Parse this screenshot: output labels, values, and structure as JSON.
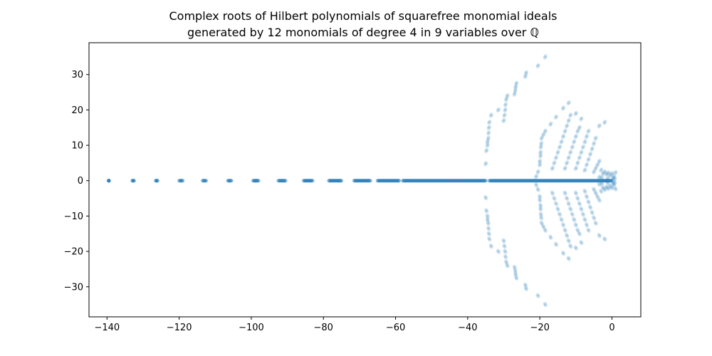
{
  "chart_data": {
    "type": "scatter",
    "title": "Complex roots of Hilbert polynomials of squarefree monomial ideals",
    "subtitle": "generated by 12 monomials of degree 4 in 9 variables over ℚ",
    "xlabel": "",
    "ylabel": "",
    "xlim": [
      -145,
      8
    ],
    "ylim": [
      -38.5,
      39
    ],
    "xticks": [
      -140,
      -120,
      -100,
      -80,
      -60,
      -40,
      -20,
      0
    ],
    "yticks": [
      -30,
      -20,
      -10,
      0,
      10,
      20,
      30
    ],
    "xtick_labels": [
      "−140",
      "−120",
      "−100",
      "−80",
      "−60",
      "−40",
      "−20",
      "0"
    ],
    "ytick_labels": [
      "−30",
      "−20",
      "−10",
      "0",
      "10",
      "20",
      "30"
    ],
    "grid": false,
    "legend": "none",
    "series": [
      {
        "color": "#1f77b4",
        "opacity": 0.15,
        "points_upper_half_plane_mirrored": true,
        "real_axis_clusters": [
          {
            "x": [
              -139.5,
              -139.5
            ]
          },
          {
            "x": [
              -133,
              -132.5
            ]
          },
          {
            "x": [
              -126.5,
              -126
            ]
          },
          {
            "x": [
              -120,
              -119
            ]
          },
          {
            "x": [
              -113.5,
              -112.5
            ]
          },
          {
            "x": [
              -106.5,
              -105.5
            ]
          },
          {
            "x": [
              -99.5,
              -98
            ]
          },
          {
            "x": [
              -92.5,
              -90.5
            ]
          },
          {
            "x": [
              -85.5,
              -83
            ]
          },
          {
            "x": [
              -78.5,
              -75
            ]
          },
          {
            "x": [
              -71.5,
              -67
            ]
          },
          {
            "x": [
              -65,
              -59
            ]
          },
          {
            "x": [
              -58,
              -35
            ]
          },
          {
            "x": [
              -34,
              0
            ]
          }
        ],
        "complex_points": [
          {
            "x": -35.0,
            "y": 4.8
          },
          {
            "x": -34.8,
            "y": 8.5
          },
          {
            "x": -34.5,
            "y": 10.0
          },
          {
            "x": -34.5,
            "y": 11.0
          },
          {
            "x": -34.3,
            "y": 12.0
          },
          {
            "x": -34.2,
            "y": 13.5
          },
          {
            "x": -34.1,
            "y": 15.0
          },
          {
            "x": -34.0,
            "y": 16.5
          },
          {
            "x": -33.5,
            "y": 18.5
          },
          {
            "x": -31.5,
            "y": 20.0
          },
          {
            "x": -30.0,
            "y": 17.0
          },
          {
            "x": -29.8,
            "y": 18.5
          },
          {
            "x": -29.6,
            "y": 20.0
          },
          {
            "x": -29.5,
            "y": 21.5
          },
          {
            "x": -29.3,
            "y": 23.0
          },
          {
            "x": -29.0,
            "y": 24.0
          },
          {
            "x": -27.0,
            "y": 24.5
          },
          {
            "x": -26.8,
            "y": 25.5
          },
          {
            "x": -26.7,
            "y": 26.5
          },
          {
            "x": -26.5,
            "y": 27.5
          },
          {
            "x": -24.0,
            "y": 29.5
          },
          {
            "x": -23.8,
            "y": 30.5
          },
          {
            "x": -20.5,
            "y": 32.5
          },
          {
            "x": -18.5,
            "y": 35.0
          },
          {
            "x": -21.0,
            "y": 1.2
          },
          {
            "x": -20.5,
            "y": 2.5
          },
          {
            "x": -20.0,
            "y": 4.5
          },
          {
            "x": -20.0,
            "y": 5.5
          },
          {
            "x": -19.8,
            "y": 7.0
          },
          {
            "x": -19.8,
            "y": 8.0
          },
          {
            "x": -19.7,
            "y": 9.5
          },
          {
            "x": -19.6,
            "y": 10.5
          },
          {
            "x": -19.5,
            "y": 12.0
          },
          {
            "x": -19.0,
            "y": 13.0
          },
          {
            "x": -18.5,
            "y": 14.0
          },
          {
            "x": -17.0,
            "y": 16.0
          },
          {
            "x": -15.5,
            "y": 18.0
          },
          {
            "x": -13.5,
            "y": 20.5
          },
          {
            "x": -12.0,
            "y": 22.0
          },
          {
            "x": -10.0,
            "y": 19.0
          },
          {
            "x": -8.5,
            "y": 17.5
          },
          {
            "x": -16.5,
            "y": 3.5
          },
          {
            "x": -16.0,
            "y": 5.0
          },
          {
            "x": -15.5,
            "y": 6.5
          },
          {
            "x": -15.0,
            "y": 8.0
          },
          {
            "x": -14.5,
            "y": 9.5
          },
          {
            "x": -14.0,
            "y": 11.0
          },
          {
            "x": -13.5,
            "y": 12.5
          },
          {
            "x": -13.0,
            "y": 14.0
          },
          {
            "x": -12.5,
            "y": 15.5
          },
          {
            "x": -12.0,
            "y": 17.0
          },
          {
            "x": -11.5,
            "y": 18.5
          },
          {
            "x": -13.0,
            "y": 3.5
          },
          {
            "x": -12.5,
            "y": 5.0
          },
          {
            "x": -12.0,
            "y": 6.5
          },
          {
            "x": -11.5,
            "y": 8.0
          },
          {
            "x": -11.0,
            "y": 9.5
          },
          {
            "x": -10.5,
            "y": 11.0
          },
          {
            "x": -10.0,
            "y": 12.5
          },
          {
            "x": -9.5,
            "y": 14.0
          },
          {
            "x": -9.0,
            "y": 15.0
          },
          {
            "x": -10.0,
            "y": 3.5
          },
          {
            "x": -9.5,
            "y": 5.0
          },
          {
            "x": -9.0,
            "y": 6.5
          },
          {
            "x": -8.5,
            "y": 8.0
          },
          {
            "x": -8.0,
            "y": 9.5
          },
          {
            "x": -7.5,
            "y": 11.0
          },
          {
            "x": -7.0,
            "y": 12.5
          },
          {
            "x": -6.5,
            "y": 14.0
          },
          {
            "x": -7.5,
            "y": 3.0
          },
          {
            "x": -7.0,
            "y": 4.5
          },
          {
            "x": -6.5,
            "y": 6.0
          },
          {
            "x": -6.0,
            "y": 7.5
          },
          {
            "x": -5.5,
            "y": 9.0
          },
          {
            "x": -5.0,
            "y": 10.5
          },
          {
            "x": -4.5,
            "y": 12.0
          },
          {
            "x": -3.5,
            "y": 15.5
          },
          {
            "x": -2.0,
            "y": 16.5
          },
          {
            "x": -5.0,
            "y": 2.5
          },
          {
            "x": -4.5,
            "y": 3.5
          },
          {
            "x": -4.0,
            "y": 4.5
          },
          {
            "x": -3.5,
            "y": 5.5
          },
          {
            "x": -3.0,
            "y": 3.0
          },
          {
            "x": -2.5,
            "y": 2.0
          },
          {
            "x": -2.0,
            "y": 2.5
          },
          {
            "x": -1.5,
            "y": 1.8
          },
          {
            "x": -1.0,
            "y": 2.2
          },
          {
            "x": -0.5,
            "y": 1.5
          },
          {
            "x": 0.0,
            "y": 2.0
          },
          {
            "x": 0.5,
            "y": 1.2
          },
          {
            "x": 1.0,
            "y": 2.3
          },
          {
            "x": -3.5,
            "y": 1.0
          },
          {
            "x": -2.8,
            "y": 0.8
          },
          {
            "x": -1.2,
            "y": 0.6
          },
          {
            "x": 0.3,
            "y": 0.7
          },
          {
            "x": 0.8,
            "y": 0.5
          }
        ]
      }
    ]
  }
}
